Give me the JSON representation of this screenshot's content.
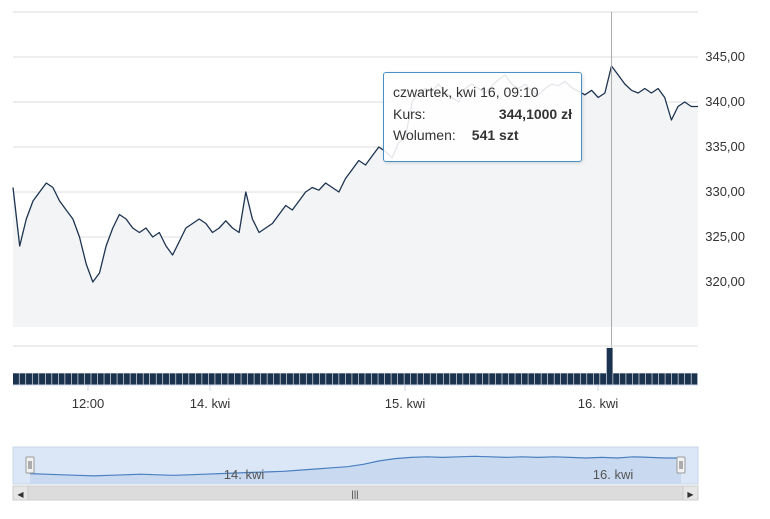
{
  "chart_data": [
    {
      "type": "line",
      "y_ticks": [
        "345,00",
        "340,00",
        "335,00",
        "330,00",
        "325,00",
        "320,00"
      ],
      "y_tick_values": [
        345,
        340,
        335,
        330,
        325,
        320
      ],
      "ylim": [
        315,
        350
      ],
      "x_tick_labels": [
        "12:00",
        "14. kwi",
        "15. kwi",
        "16. kwi"
      ],
      "grid": true,
      "series": [
        {
          "values": [
            330.5,
            324,
            327,
            329,
            330,
            331,
            330.5,
            329,
            328,
            327,
            325,
            322,
            320,
            321,
            324,
            326,
            327.5,
            327,
            326,
            325.5,
            326,
            325,
            325.5,
            324,
            323,
            324.5,
            326,
            326.5,
            327,
            326.5,
            325.5,
            326,
            326.8,
            326,
            325.5,
            330,
            327,
            325.5,
            326,
            326.5,
            327.5,
            328.5,
            328,
            329,
            330,
            330.5,
            330.2,
            331,
            330.5,
            330,
            331.5,
            332.5,
            333.5,
            333,
            334,
            335,
            334.5,
            333.8,
            335.5,
            336,
            340,
            341,
            341.5,
            341.2,
            342,
            341,
            340.5,
            340,
            341.5,
            342,
            341.5,
            341,
            341.8,
            342.5,
            343,
            342,
            341.5,
            342,
            341.2,
            340.8,
            341.5,
            342,
            341.8,
            342.3,
            341.6,
            341.2,
            340.8,
            341.3,
            340.5,
            341,
            344,
            343,
            342,
            341.3,
            341,
            341.5,
            341,
            341.5,
            340.5,
            338,
            339.5,
            340,
            339.5,
            339.5
          ]
        }
      ],
      "volume": {
        "values": [
          3,
          3,
          3,
          3,
          3,
          3,
          3,
          3,
          3,
          3,
          3,
          3,
          3,
          3,
          3,
          3,
          3,
          3,
          3,
          3,
          3,
          3,
          3,
          3,
          3,
          3,
          3,
          3,
          3,
          3,
          3,
          3,
          3,
          3,
          3,
          3,
          3,
          3,
          3,
          3,
          3,
          3,
          3,
          3,
          3,
          3,
          3,
          3,
          3,
          3,
          3,
          3,
          3,
          3,
          3,
          3,
          3,
          3,
          3,
          3,
          3,
          3,
          3,
          3,
          3,
          3,
          3,
          3,
          3,
          3,
          3,
          3,
          3,
          3,
          3,
          3,
          3,
          3,
          3,
          3,
          3,
          3,
          3,
          3,
          3,
          3,
          3,
          3,
          3,
          3,
          3,
          9.5,
          3,
          3,
          3,
          3,
          3,
          3,
          3,
          3,
          3,
          3,
          3,
          3,
          3
        ]
      }
    },
    {
      "type": "area",
      "x_tick_labels": [
        "14. kwi",
        "16. kwi"
      ],
      "series": [
        {
          "values": [
            327,
            326.5,
            326,
            325.5,
            325,
            325.5,
            326,
            326.5,
            326,
            325.5,
            326,
            326.5,
            327,
            327.5,
            328,
            328.5,
            329,
            330,
            331,
            332,
            333,
            335,
            338,
            340,
            341,
            341.5,
            341,
            341.5,
            342,
            341.5,
            341,
            341.5,
            341,
            341.5,
            341,
            340.5,
            341,
            340.5,
            341.5,
            341,
            340.5,
            340.5
          ]
        }
      ]
    }
  ],
  "tooltip": {
    "title": "czwartek, kwi 16, 09:10",
    "price_label": "Kurs:",
    "price_value": "344,1000 zł",
    "volume_label": "Wolumen:",
    "volume_value": "541 szt"
  },
  "scrollbar": {
    "left_arrow": "◀",
    "right_arrow": "▶",
    "grip": "|||"
  },
  "colors": {
    "line": "#1c3350",
    "area_fill": "#f3f4f6",
    "grid": "#dddddd",
    "crosshair": "#aaaaaa",
    "tooltip_border": "#4a90c8",
    "navigator_fill": "#dbe7f6",
    "navigator_line": "#4a7fc0",
    "scrollbar": "#dcdcdc"
  }
}
